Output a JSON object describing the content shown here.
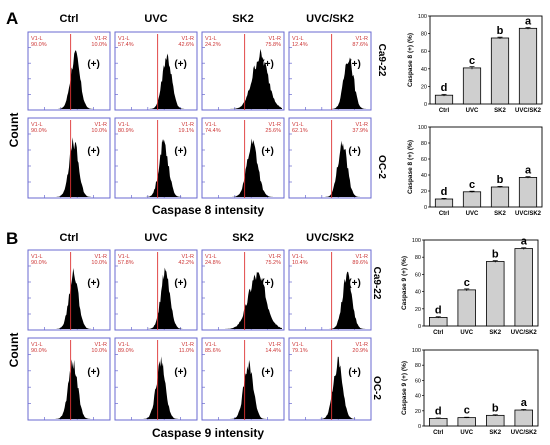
{
  "panels": [
    {
      "letter": "A",
      "col_headers": [
        "Ctrl",
        "UVC",
        "SK2",
        "UVC/SK2"
      ],
      "y_title": "Count",
      "x_title": "Caspase 8 intensity",
      "rows": [
        {
          "cell_line": "Ca9-22",
          "histograms": [
            {
              "left_gate": "V1-L",
              "left_pct": "90.0%",
              "right_gate": "V1-R",
              "right_pct": "10.0%",
              "marker": "(+)",
              "peak": 0.58,
              "width": 0.06,
              "shape": "normal"
            },
            {
              "left_gate": "V1-L",
              "left_pct": "57.4%",
              "right_gate": "V1-R",
              "right_pct": "42.6%",
              "marker": "(+)",
              "peak": 0.64,
              "width": 0.06,
              "shape": "normal"
            },
            {
              "left_gate": "V1-L",
              "left_pct": "24.2%",
              "right_gate": "V1-R",
              "right_pct": "75.8%",
              "marker": "(+)",
              "peak": 0.72,
              "width": 0.1,
              "shape": "broad"
            },
            {
              "left_gate": "V1-L",
              "left_pct": "12.4%",
              "right_gate": "V1-R",
              "right_pct": "87.6%",
              "marker": "(+)",
              "peak": 0.74,
              "width": 0.06,
              "shape": "normal"
            }
          ]
        },
        {
          "cell_line": "OC-2",
          "histograms": [
            {
              "left_gate": "V1-L",
              "left_pct": "90.0%",
              "right_gate": "V1-R",
              "right_pct": "10.0%",
              "marker": "(+)",
              "peak": 0.56,
              "width": 0.06,
              "shape": "normal"
            },
            {
              "left_gate": "V1-L",
              "left_pct": "80.9%",
              "right_gate": "V1-R",
              "right_pct": "19.1%",
              "marker": "(+)",
              "peak": 0.6,
              "width": 0.06,
              "shape": "normal"
            },
            {
              "left_gate": "V1-L",
              "left_pct": "74.4%",
              "right_gate": "V1-R",
              "right_pct": "25.6%",
              "marker": "(+)",
              "peak": 0.62,
              "width": 0.07,
              "shape": "normal"
            },
            {
              "left_gate": "V1-L",
              "left_pct": "62.1%",
              "right_gate": "V1-R",
              "right_pct": "37.9%",
              "marker": "(+)",
              "peak": 0.66,
              "width": 0.06,
              "shape": "normal"
            }
          ]
        }
      ]
    },
    {
      "letter": "B",
      "col_headers": [
        "Ctrl",
        "UVC",
        "SK2",
        "UVC/SK2"
      ],
      "y_title": "Count",
      "x_title": "Caspase 9 intensity",
      "rows": [
        {
          "cell_line": "Ca9-22",
          "histograms": [
            {
              "left_gate": "V1-L",
              "left_pct": "90.0%",
              "right_gate": "V1-R",
              "right_pct": "10.0%",
              "marker": "(+)",
              "peak": 0.56,
              "width": 0.06,
              "shape": "normal"
            },
            {
              "left_gate": "V1-L",
              "left_pct": "57.8%",
              "right_gate": "V1-R",
              "right_pct": "42.2%",
              "marker": "(+)",
              "peak": 0.62,
              "width": 0.06,
              "shape": "normal"
            },
            {
              "left_gate": "V1-L",
              "left_pct": "24.8%",
              "right_gate": "V1-R",
              "right_pct": "75.2%",
              "marker": "(+)",
              "peak": 0.68,
              "width": 0.11,
              "shape": "broad"
            },
            {
              "left_gate": "V1-L",
              "left_pct": "10.4%",
              "right_gate": "V1-R",
              "right_pct": "89.6%",
              "marker": "(+)",
              "peak": 0.72,
              "width": 0.06,
              "shape": "normal"
            }
          ]
        },
        {
          "cell_line": "OC-2",
          "histograms": [
            {
              "left_gate": "V1-L",
              "left_pct": "90.0%",
              "right_gate": "V1-R",
              "right_pct": "10.0%",
              "marker": "(+)",
              "peak": 0.55,
              "width": 0.06,
              "shape": "normal"
            },
            {
              "left_gate": "V1-L",
              "left_pct": "89.0%",
              "right_gate": "V1-R",
              "right_pct": "11.0%",
              "marker": "(+)",
              "peak": 0.56,
              "width": 0.06,
              "shape": "normal"
            },
            {
              "left_gate": "V1-L",
              "left_pct": "85.6%",
              "right_gate": "V1-R",
              "right_pct": "14.4%",
              "marker": "(+)",
              "peak": 0.57,
              "width": 0.06,
              "shape": "normal"
            },
            {
              "left_gate": "V1-L",
              "left_pct": "79.1%",
              "right_gate": "V1-R",
              "right_pct": "20.9%",
              "marker": "(+)",
              "peak": 0.6,
              "width": 0.06,
              "shape": "normal"
            }
          ]
        }
      ]
    }
  ],
  "chart_data": [
    {
      "type": "bar",
      "panel": "A",
      "cell_line": "Ca9-22",
      "ylabel": "Caspase 8 (+) (%)",
      "categories": [
        "Ctrl",
        "UVC",
        "SK2",
        "UVC/SK2"
      ],
      "values": [
        10,
        41,
        75,
        86
      ],
      "errors": [
        1,
        1.5,
        1,
        1
      ],
      "letters": [
        "d",
        "c",
        "b",
        "a"
      ],
      "ylim": [
        0,
        100
      ],
      "yticks": [
        0,
        20,
        40,
        60,
        80,
        100
      ]
    },
    {
      "type": "bar",
      "panel": "A",
      "cell_line": "OC-2",
      "ylabel": "Caspase 8 (+) (%)",
      "categories": [
        "Ctrl",
        "UVC",
        "SK2",
        "UVC/SK2"
      ],
      "values": [
        10,
        19,
        25,
        37
      ],
      "errors": [
        0.8,
        0.8,
        0.8,
        1
      ],
      "letters": [
        "d",
        "c",
        "b",
        "a"
      ],
      "ylim": [
        0,
        100
      ],
      "yticks": [
        0,
        20,
        40,
        60,
        80,
        100
      ]
    },
    {
      "type": "bar",
      "panel": "B",
      "cell_line": "Ca9-22",
      "ylabel": "Caspase 9 (+) (%)",
      "categories": [
        "Ctrl",
        "UVC",
        "SK2",
        "UVC/SK2"
      ],
      "values": [
        10,
        42,
        75,
        90
      ],
      "errors": [
        0.8,
        1.2,
        1,
        1
      ],
      "letters": [
        "d",
        "c",
        "b",
        "a"
      ],
      "ylim": [
        0,
        100
      ],
      "yticks": [
        0,
        20,
        40,
        60,
        80,
        100
      ]
    },
    {
      "type": "bar",
      "panel": "B",
      "cell_line": "OC-2",
      "ylabel": "Caspase 9 (+) (%)",
      "categories": [
        "Ctrl",
        "UVC",
        "SK2",
        "UVC/SK2"
      ],
      "values": [
        10,
        11,
        14,
        21
      ],
      "errors": [
        0.6,
        0.6,
        0.8,
        0.8
      ],
      "letters": [
        "d",
        "c",
        "b",
        "a"
      ],
      "ylim": [
        0,
        100
      ],
      "yticks": [
        0,
        20,
        40,
        60,
        80,
        100
      ]
    }
  ]
}
